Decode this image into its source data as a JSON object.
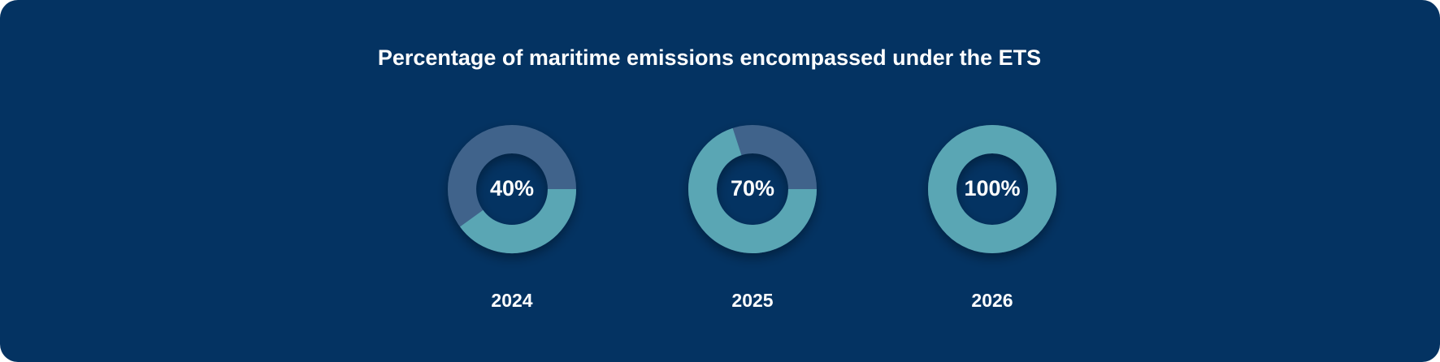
{
  "colors": {
    "background": "#043362",
    "covered": "#5aa6b4",
    "not_covered": "#41648b",
    "text": "#ffffff"
  },
  "chart_data": {
    "type": "pie",
    "title": "Percentage of maritime emissions encompassed under the ETS",
    "items": [
      {
        "year": "2024",
        "value": 40,
        "label": "40%"
      },
      {
        "year": "2025",
        "value": 70,
        "label": "70%"
      },
      {
        "year": "2026",
        "value": 100,
        "label": "100%"
      }
    ]
  }
}
